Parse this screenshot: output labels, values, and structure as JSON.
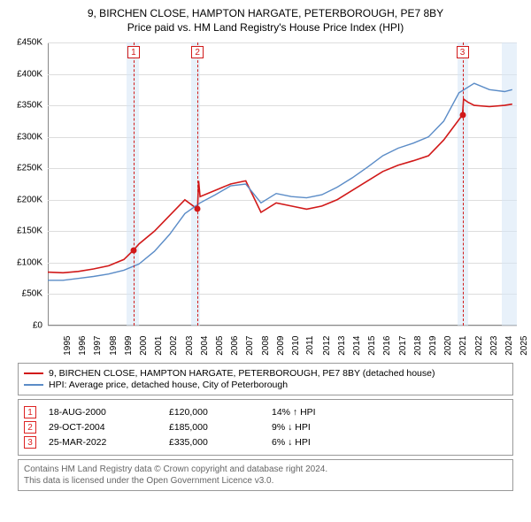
{
  "title": {
    "line1": "9, BIRCHEN CLOSE, HAMPTON HARGATE, PETERBOROUGH, PE7 8BY",
    "line2": "Price paid vs. HM Land Registry's House Price Index (HPI)"
  },
  "chart": {
    "type": "line",
    "x_range": [
      1995,
      2025.8
    ],
    "y_range": [
      0,
      450000
    ],
    "y_ticks": [
      0,
      50000,
      100000,
      150000,
      200000,
      250000,
      300000,
      350000,
      400000,
      450000
    ],
    "y_tick_labels": [
      "£0",
      "£50K",
      "£100K",
      "£150K",
      "£200K",
      "£250K",
      "£300K",
      "£350K",
      "£400K",
      "£450K"
    ],
    "x_ticks": [
      1995,
      1996,
      1997,
      1998,
      1999,
      2000,
      2001,
      2002,
      2003,
      2004,
      2005,
      2006,
      2007,
      2008,
      2009,
      2010,
      2011,
      2012,
      2013,
      2014,
      2015,
      2016,
      2017,
      2018,
      2019,
      2020,
      2021,
      2022,
      2023,
      2024,
      2025
    ],
    "grid_color": "#dddddd",
    "background_color": "#ffffff",
    "shade_bands": [
      {
        "from": 2000.2,
        "to": 2001.0,
        "color": "#d6e6f5"
      },
      {
        "from": 2004.4,
        "to": 2005.0,
        "color": "#d6e6f5"
      },
      {
        "from": 2021.9,
        "to": 2022.6,
        "color": "#d6e6f5"
      },
      {
        "from": 2024.8,
        "to": 2025.8,
        "color": "#d6e6f5"
      }
    ],
    "series": [
      {
        "id": "property",
        "label": "9, BIRCHEN CLOSE, HAMPTON HARGATE, PETERBOROUGH, PE7 8BY (detached house)",
        "color": "#d11919",
        "width": 1.6,
        "points": [
          [
            1995,
            85000
          ],
          [
            1996,
            84000
          ],
          [
            1997,
            86000
          ],
          [
            1998,
            90000
          ],
          [
            1999,
            95000
          ],
          [
            2000,
            105000
          ],
          [
            2000.63,
            120000
          ],
          [
            2001,
            130000
          ],
          [
            2002,
            150000
          ],
          [
            2003,
            175000
          ],
          [
            2004,
            200000
          ],
          [
            2004.83,
            185000
          ],
          [
            2004.9,
            230000
          ],
          [
            2005,
            205000
          ],
          [
            2006,
            215000
          ],
          [
            2007,
            225000
          ],
          [
            2008,
            230000
          ],
          [
            2009,
            180000
          ],
          [
            2010,
            195000
          ],
          [
            2011,
            190000
          ],
          [
            2012,
            185000
          ],
          [
            2013,
            190000
          ],
          [
            2014,
            200000
          ],
          [
            2015,
            215000
          ],
          [
            2016,
            230000
          ],
          [
            2017,
            245000
          ],
          [
            2018,
            255000
          ],
          [
            2019,
            262000
          ],
          [
            2020,
            270000
          ],
          [
            2021,
            295000
          ],
          [
            2022.23,
            335000
          ],
          [
            2022.3,
            360000
          ],
          [
            2022.6,
            355000
          ],
          [
            2023,
            350000
          ],
          [
            2024,
            348000
          ],
          [
            2025,
            350000
          ],
          [
            2025.5,
            352000
          ]
        ]
      },
      {
        "id": "hpi",
        "label": "HPI: Average price, detached house, City of Peterborough",
        "color": "#5b8cc7",
        "width": 1.4,
        "points": [
          [
            1995,
            72000
          ],
          [
            1996,
            72000
          ],
          [
            1997,
            75000
          ],
          [
            1998,
            78000
          ],
          [
            1999,
            82000
          ],
          [
            2000,
            88000
          ],
          [
            2001,
            98000
          ],
          [
            2002,
            118000
          ],
          [
            2003,
            145000
          ],
          [
            2004,
            178000
          ],
          [
            2005,
            195000
          ],
          [
            2006,
            208000
          ],
          [
            2007,
            222000
          ],
          [
            2008,
            225000
          ],
          [
            2009,
            195000
          ],
          [
            2010,
            210000
          ],
          [
            2011,
            205000
          ],
          [
            2012,
            203000
          ],
          [
            2013,
            208000
          ],
          [
            2014,
            220000
          ],
          [
            2015,
            235000
          ],
          [
            2016,
            252000
          ],
          [
            2017,
            270000
          ],
          [
            2018,
            282000
          ],
          [
            2019,
            290000
          ],
          [
            2020,
            300000
          ],
          [
            2021,
            325000
          ],
          [
            2022,
            370000
          ],
          [
            2023,
            385000
          ],
          [
            2024,
            375000
          ],
          [
            2025,
            372000
          ],
          [
            2025.5,
            375000
          ]
        ]
      }
    ],
    "markers": [
      {
        "n": "1",
        "x": 2000.63,
        "y": 120000,
        "color": "#d11919"
      },
      {
        "n": "2",
        "x": 2004.83,
        "y": 185000,
        "color": "#d11919"
      },
      {
        "n": "3",
        "x": 2022.23,
        "y": 335000,
        "color": "#d11919"
      }
    ]
  },
  "legend": {
    "items": [
      {
        "color": "#d11919",
        "label": "9, BIRCHEN CLOSE, HAMPTON HARGATE, PETERBOROUGH, PE7 8BY (detached house)"
      },
      {
        "color": "#5b8cc7",
        "label": "HPI: Average price, detached house, City of Peterborough"
      }
    ]
  },
  "events": [
    {
      "n": "1",
      "date": "18-AUG-2000",
      "price": "£120,000",
      "delta": "14% ↑ HPI"
    },
    {
      "n": "2",
      "date": "29-OCT-2004",
      "price": "£185,000",
      "delta": "9% ↓ HPI"
    },
    {
      "n": "3",
      "date": "25-MAR-2022",
      "price": "£335,000",
      "delta": "6% ↓ HPI"
    }
  ],
  "footer": {
    "line1": "Contains HM Land Registry data © Crown copyright and database right 2024.",
    "line2": "This data is licensed under the Open Government Licence v3.0."
  }
}
